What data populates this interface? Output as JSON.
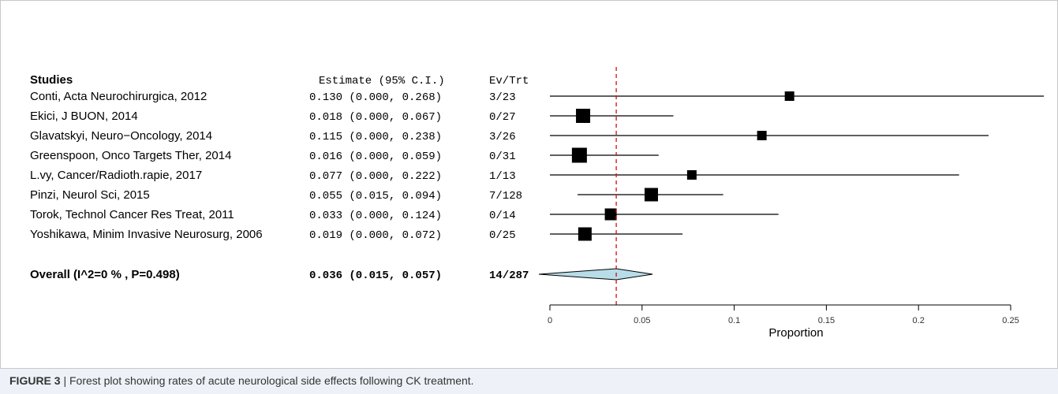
{
  "caption": {
    "label": "FIGURE 3",
    "separator": " | ",
    "text": "Forest plot showing rates of acute neurological side effects following CK treatment."
  },
  "chart_data": {
    "type": "forest",
    "headers": {
      "studies": "Studies",
      "estimate": "Estimate (95% C.I.)",
      "events": "Ev/Trt"
    },
    "studies": [
      {
        "label": "Conti, Acta Neurochirurgica, 2012",
        "estimate": 0.13,
        "lower": 0.0,
        "upper": 0.268,
        "ci_text": "0.130 (0.000, 0.268)",
        "events": "3/23",
        "weight": 0.4
      },
      {
        "label": "Ekici, J BUON, 2014",
        "estimate": 0.018,
        "lower": 0.0,
        "upper": 0.067,
        "ci_text": "0.018 (0.000, 0.067)",
        "events": "0/27",
        "weight": 1.0
      },
      {
        "label": "Glavatskyi, Neuro−Oncology, 2014",
        "estimate": 0.115,
        "lower": 0.0,
        "upper": 0.238,
        "ci_text": "0.115 (0.000, 0.238)",
        "events": "3/26",
        "weight": 0.4
      },
      {
        "label": "Greenspoon, Onco Targets Ther, 2014",
        "estimate": 0.016,
        "lower": 0.0,
        "upper": 0.059,
        "ci_text": "0.016 (0.000, 0.059)",
        "events": "0/31",
        "weight": 1.1
      },
      {
        "label": "L.vy, Cancer/Radioth.rapie, 2017",
        "estimate": 0.077,
        "lower": 0.0,
        "upper": 0.222,
        "ci_text": "0.077 (0.000, 0.222)",
        "events": "1/13",
        "weight": 0.4
      },
      {
        "label": "Pinzi, Neurol Sci, 2015",
        "estimate": 0.055,
        "lower": 0.015,
        "upper": 0.094,
        "ci_text": "0.055 (0.015, 0.094)",
        "events": "7/128",
        "weight": 0.9
      },
      {
        "label": "Torok, Technol Cancer Res Treat, 2011",
        "estimate": 0.033,
        "lower": 0.0,
        "upper": 0.124,
        "ci_text": "0.033 (0.000, 0.124)",
        "events": "0/14",
        "weight": 0.7
      },
      {
        "label": "Yoshikawa, Minim Invasive Neurosurg, 2006",
        "estimate": 0.019,
        "lower": 0.0,
        "upper": 0.072,
        "ci_text": "0.019 (0.000, 0.072)",
        "events": "0/25",
        "weight": 0.9
      }
    ],
    "overall": {
      "label": "Overall (I^2=0 % , P=0.498)",
      "estimate": 0.036,
      "lower": 0.015,
      "upper": 0.057,
      "ci_text": "0.036 (0.015, 0.057)",
      "events": "14/287"
    },
    "xlabel": "Proportion",
    "xlim": [
      0,
      0.25
    ],
    "ticks": [
      0,
      0.05,
      0.1,
      0.15,
      0.2,
      0.25
    ],
    "tick_labels": [
      "0",
      "0.05",
      "0.1",
      "0.15",
      "0.2",
      "0.25"
    ],
    "reference_line": 0.036,
    "colors": {
      "reference_line": "#cc1111",
      "diamond_fill": "#b7dde8",
      "marker": "#000000"
    }
  }
}
